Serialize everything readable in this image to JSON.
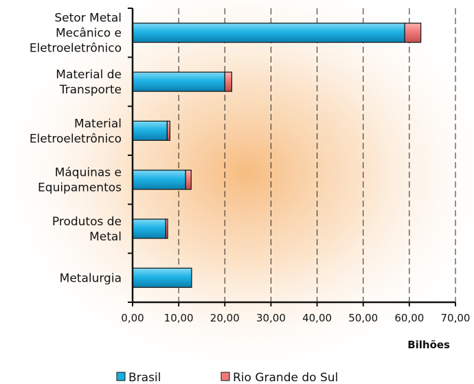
{
  "chart_data": {
    "type": "bar",
    "orientation": "horizontal",
    "stacked": true,
    "categories": [
      [
        "Setor Metal",
        "Mecânico e",
        "Eletroeletrônico"
      ],
      [
        "Material de",
        "Transporte"
      ],
      [
        "Material",
        "Eletroeletrônico"
      ],
      [
        "Máquinas e",
        "Equipamentos"
      ],
      [
        "Produtos de",
        "Metal"
      ],
      [
        "Metalurgia"
      ]
    ],
    "series": [
      {
        "name": "Brasil",
        "color": "#1aaee0",
        "values": [
          59.0,
          20.0,
          7.5,
          11.5,
          7.2,
          12.8
        ]
      },
      {
        "name": "Rio Grande do Sul",
        "color": "#f07a7a",
        "values": [
          3.5,
          1.5,
          0.6,
          1.2,
          0.4,
          0.0
        ]
      }
    ],
    "xlim": [
      0,
      70
    ],
    "xticks": [
      "0,00",
      "10,00",
      "20,00",
      "30,00",
      "40,00",
      "50,00",
      "60,00",
      "70,00"
    ],
    "xtick_step": 10,
    "xlabel": "Bilhões",
    "title": "",
    "grid": "vertical-dashed",
    "legend_position": "bottom",
    "background": "radial orange glow"
  }
}
